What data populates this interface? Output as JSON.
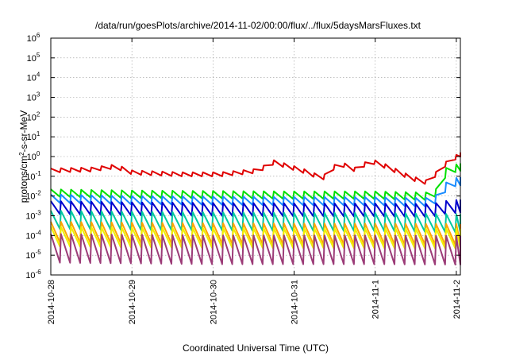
{
  "chart_data": {
    "type": "line",
    "title": "/data/run/goesPlots/archive/2014-11-02/00:00/flux/../flux/5daysMarsFluxes.txt",
    "xlabel": "Coordinated Universal Time (UTC)",
    "ylabel": "protons/cm2-s-sr-MeV",
    "ylabel_parts": {
      "base": "protons/cm",
      "sup": "2",
      "rest": "-s-sr-MeV"
    },
    "y_scale": "log",
    "ylim_exponents": [
      -6,
      6
    ],
    "y_tick_base": "10",
    "y_tick_exponents": [
      "-6",
      "-5",
      "-4",
      "-3",
      "-2",
      "-1",
      "0",
      "1",
      "2",
      "3",
      "4",
      "5",
      "6"
    ],
    "x_ticks": [
      "2014-10-28",
      "2014-10-29",
      "2014-10-30",
      "2014-10-31",
      "2014-11-1",
      "2014-11-2"
    ],
    "x_range_days": [
      0,
      5.05
    ],
    "grid": true,
    "oscillation_period_days": 0.125,
    "series": [
      {
        "color": "#e00000",
        "knots": [
          [
            0.0,
            0.25
          ],
          [
            0.5,
            0.28
          ],
          [
            0.8,
            0.4
          ],
          [
            1.0,
            0.2
          ],
          [
            1.6,
            0.16
          ],
          [
            2.1,
            0.16
          ],
          [
            2.55,
            0.24
          ],
          [
            2.75,
            0.65
          ],
          [
            3.1,
            0.25
          ],
          [
            3.35,
            0.1
          ],
          [
            3.55,
            0.6
          ],
          [
            3.75,
            0.28
          ],
          [
            3.95,
            0.75
          ],
          [
            4.15,
            0.38
          ],
          [
            4.45,
            0.1
          ],
          [
            4.65,
            0.06
          ],
          [
            4.8,
            0.28
          ],
          [
            4.9,
            0.7
          ],
          [
            5.05,
            1.6
          ]
        ],
        "dip_factor": 0.62
      },
      {
        "color": "#00e000",
        "knots": [
          [
            0.0,
            0.022
          ],
          [
            1.0,
            0.019
          ],
          [
            2.0,
            0.018
          ],
          [
            3.0,
            0.017
          ],
          [
            4.0,
            0.017
          ],
          [
            4.62,
            0.015
          ],
          [
            4.78,
            0.025
          ],
          [
            4.88,
            0.3
          ],
          [
            5.05,
            0.45
          ]
        ],
        "dip_factor": 0.42
      },
      {
        "color": "#1a8cff",
        "knots": [
          [
            0.0,
            0.012
          ],
          [
            1.0,
            0.01
          ],
          [
            2.0,
            0.0095
          ],
          [
            3.0,
            0.009
          ],
          [
            4.0,
            0.0088
          ],
          [
            4.62,
            0.008
          ],
          [
            4.78,
            0.012
          ],
          [
            4.9,
            0.07
          ],
          [
            5.05,
            0.09
          ]
        ],
        "dip_factor": 0.38
      },
      {
        "color": "#0000cc",
        "knots": [
          [
            0.0,
            0.0055
          ],
          [
            1.0,
            0.0048
          ],
          [
            2.0,
            0.0045
          ],
          [
            3.0,
            0.0043
          ],
          [
            4.0,
            0.0042
          ],
          [
            4.7,
            0.004
          ],
          [
            4.9,
            0.006
          ],
          [
            5.05,
            0.0065
          ]
        ],
        "dip_factor": 0.22
      },
      {
        "color": "#00c8a0",
        "knots": [
          [
            0.0,
            0.0018
          ],
          [
            1.0,
            0.0016
          ],
          [
            2.0,
            0.0015
          ],
          [
            3.0,
            0.0014
          ],
          [
            4.0,
            0.0014
          ],
          [
            5.05,
            0.0012
          ]
        ],
        "dip_factor": 0.12
      },
      {
        "color": "#ffa500",
        "knots": [
          [
            0.0,
            0.0005
          ],
          [
            1.0,
            0.00045
          ],
          [
            2.0,
            0.00042
          ],
          [
            3.0,
            0.0004
          ],
          [
            4.0,
            0.0004
          ],
          [
            5.05,
            0.00038
          ]
        ],
        "dip_factor": 0.09
      },
      {
        "color": "#f0f000",
        "knots": [
          [
            0.0,
            0.00028
          ],
          [
            1.0,
            0.00025
          ],
          [
            2.0,
            0.00024
          ],
          [
            3.0,
            0.00023
          ],
          [
            4.0,
            0.00023
          ],
          [
            5.05,
            0.00022
          ]
        ],
        "dip_factor": 0.1
      },
      {
        "color": "#9c3c78",
        "knots": [
          [
            0.0,
            0.00012
          ],
          [
            1.0,
            0.00011
          ],
          [
            2.0,
            0.0001
          ],
          [
            3.0,
            0.0001
          ],
          [
            4.0,
            0.0001
          ],
          [
            5.05,
            9.5e-05
          ]
        ],
        "dip_factor": 0.035
      }
    ]
  }
}
